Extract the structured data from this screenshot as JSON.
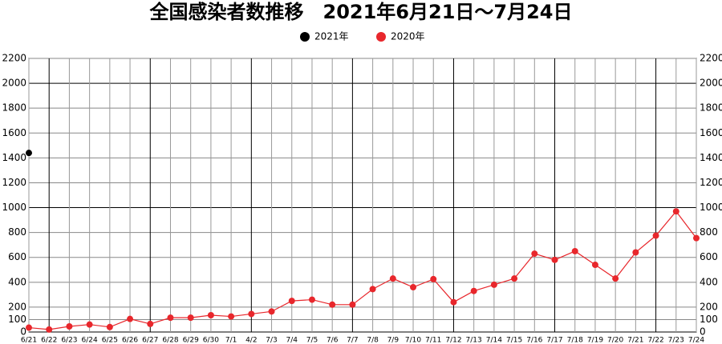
{
  "chart_data": {
    "type": "line",
    "title": "全国感染者数推移　2021年6月21日～7月24日",
    "categories": [
      "6/21",
      "6/22",
      "6/23",
      "6/24",
      "6/25",
      "6/26",
      "6/27",
      "6/28",
      "6/29",
      "6/30",
      "7/1",
      "4/2",
      "7/3",
      "7/4",
      "7/5",
      "7/6",
      "7/7",
      "7/8",
      "7/9",
      "7/10",
      "7/11",
      "7/12",
      "7/13",
      "7/14",
      "7/15",
      "7/16",
      "7/17",
      "7/18",
      "7/19",
      "7/20",
      "7/21",
      "7/22",
      "7/23",
      "7/24"
    ],
    "series": [
      {
        "name": "2021年",
        "color": "#000000",
        "values": [
          1440,
          null,
          null,
          null,
          null,
          null,
          null,
          null,
          null,
          null,
          null,
          null,
          null,
          null,
          null,
          null,
          null,
          null,
          null,
          null,
          null,
          null,
          null,
          null,
          null,
          null,
          null,
          null,
          null,
          null,
          null,
          null,
          null,
          null
        ]
      },
      {
        "name": "2020年",
        "color": "#e8272c",
        "values": [
          35,
          20,
          45,
          60,
          40,
          105,
          65,
          115,
          115,
          135,
          125,
          145,
          165,
          250,
          260,
          220,
          220,
          345,
          430,
          360,
          425,
          240,
          330,
          380,
          430,
          630,
          580,
          650,
          540,
          430,
          640,
          775,
          970,
          755
        ]
      }
    ],
    "ylim": [
      0,
      2200
    ],
    "yticks": [
      0,
      100,
      200,
      400,
      600,
      800,
      1000,
      1200,
      1400,
      1600,
      1800,
      2000,
      2200
    ],
    "grid": true
  }
}
